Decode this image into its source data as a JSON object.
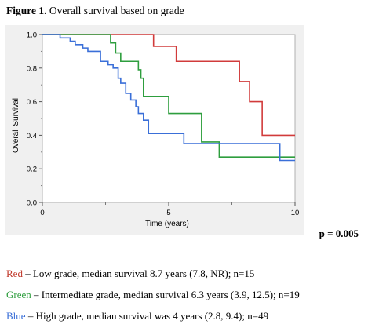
{
  "figure": {
    "label": "Figure 1.",
    "title": "Overall survival based on grade"
  },
  "pvalue": "p = 0.005",
  "legend": [
    {
      "color_word": "Red",
      "text": " – Low grade, median survival 8.7 years (7.8, NR); n=15",
      "color": "#c0392b"
    },
    {
      "color_word": "Green",
      "text": " – Intermediate grade, median survival 6.3 years (3.9, 12.5); n=19",
      "color": "#2e9e3e"
    },
    {
      "color_word": "Blue",
      "text": " – High grade, median survival was 4 years (2.8, 9.4); n=49",
      "color": "#3a6fd8"
    }
  ],
  "chart_data": {
    "type": "line",
    "step": true,
    "xlabel": "Time (years)",
    "ylabel": "Overall Survival",
    "xlim": [
      0,
      10
    ],
    "ylim": [
      0,
      1.0
    ],
    "xticks": [
      0,
      5,
      10
    ],
    "yticks": [
      0.0,
      0.2,
      0.4,
      0.6,
      0.8,
      1.0
    ],
    "ytick_labels": [
      "0.0",
      "0.2",
      "0.4",
      "0.6",
      "0.8",
      "1.0"
    ],
    "series": [
      {
        "color": "#d13b3b",
        "x": [
          0,
          4.4,
          5.3,
          7.8,
          8.2,
          8.7,
          10
        ],
        "y": [
          1.0,
          0.93,
          0.84,
          0.72,
          0.6,
          0.4,
          0.4
        ]
      },
      {
        "color": "#2e9e3e",
        "x": [
          0,
          2.7,
          2.9,
          3.1,
          3.8,
          3.9,
          4.0,
          5.0,
          6.3,
          7.0,
          10
        ],
        "y": [
          1.0,
          0.95,
          0.89,
          0.84,
          0.79,
          0.74,
          0.63,
          0.53,
          0.36,
          0.27,
          0.27
        ]
      },
      {
        "color": "#3a6fd8",
        "x": [
          0,
          0.7,
          1.1,
          1.3,
          1.6,
          1.8,
          2.3,
          2.6,
          2.8,
          3.0,
          3.1,
          3.3,
          3.5,
          3.7,
          3.8,
          4.0,
          4.2,
          5.6,
          9.4,
          10
        ],
        "y": [
          1.0,
          0.98,
          0.96,
          0.94,
          0.92,
          0.9,
          0.84,
          0.82,
          0.8,
          0.74,
          0.71,
          0.65,
          0.61,
          0.57,
          0.53,
          0.49,
          0.41,
          0.35,
          0.25,
          0.25
        ]
      }
    ]
  }
}
